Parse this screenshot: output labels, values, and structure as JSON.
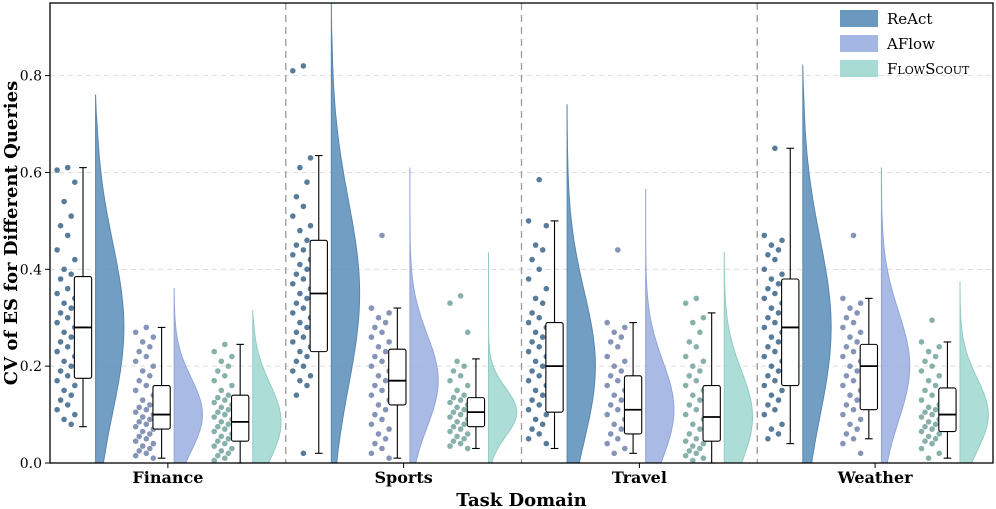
{
  "chart_data": {
    "type": "raincloud",
    "xlabel": "Task Domain",
    "ylabel": "CV of ES for Different Queries",
    "ylim": [
      0,
      0.95
    ],
    "yticks": [
      "0.0",
      "0.2",
      "0.4",
      "0.6",
      "0.8"
    ],
    "grid": "horizontal dashed",
    "legend_position": "top-right",
    "categories": [
      "Finance",
      "Sports",
      "Travel",
      "Weather"
    ],
    "series": [
      {
        "name": "ReAct",
        "color": "#5b8db8",
        "stats": [
          {
            "min": 0.075,
            "q1": 0.175,
            "median": 0.28,
            "q3": 0.385,
            "max": 0.61,
            "kde_max": 0.76
          },
          {
            "min": 0.02,
            "q1": 0.23,
            "median": 0.35,
            "q3": 0.46,
            "max": 0.635,
            "kde_max": 0.95
          },
          {
            "min": 0.03,
            "q1": 0.105,
            "median": 0.2,
            "q3": 0.29,
            "max": 0.5,
            "kde_max": 0.74
          },
          {
            "min": 0.04,
            "q1": 0.16,
            "median": 0.28,
            "q3": 0.38,
            "max": 0.65,
            "kde_max": 0.82
          }
        ],
        "points": [
          [
            0.61,
            0.605,
            0.58,
            0.54,
            0.51,
            0.49,
            0.47,
            0.44,
            0.42,
            0.4,
            0.39,
            0.38,
            0.36,
            0.35,
            0.34,
            0.33,
            0.32,
            0.31,
            0.3,
            0.29,
            0.28,
            0.27,
            0.26,
            0.25,
            0.24,
            0.23,
            0.22,
            0.21,
            0.2,
            0.19,
            0.18,
            0.17,
            0.16,
            0.15,
            0.14,
            0.13,
            0.12,
            0.11,
            0.1,
            0.09,
            0.08
          ],
          [
            0.82,
            0.81,
            0.63,
            0.61,
            0.58,
            0.55,
            0.53,
            0.51,
            0.49,
            0.48,
            0.46,
            0.45,
            0.44,
            0.43,
            0.42,
            0.41,
            0.4,
            0.39,
            0.38,
            0.37,
            0.36,
            0.35,
            0.34,
            0.33,
            0.32,
            0.31,
            0.3,
            0.29,
            0.28,
            0.27,
            0.26,
            0.25,
            0.24,
            0.23,
            0.22,
            0.21,
            0.2,
            0.19,
            0.18,
            0.17,
            0.16,
            0.14,
            0.02
          ],
          [
            0.585,
            0.5,
            0.49,
            0.45,
            0.44,
            0.42,
            0.4,
            0.38,
            0.36,
            0.34,
            0.33,
            0.31,
            0.3,
            0.29,
            0.28,
            0.27,
            0.26,
            0.25,
            0.24,
            0.23,
            0.22,
            0.21,
            0.2,
            0.19,
            0.18,
            0.17,
            0.16,
            0.15,
            0.14,
            0.13,
            0.12,
            0.11,
            0.1,
            0.09,
            0.08,
            0.07,
            0.06,
            0.05,
            0.04
          ],
          [
            0.65,
            0.47,
            0.46,
            0.45,
            0.44,
            0.43,
            0.42,
            0.4,
            0.39,
            0.38,
            0.37,
            0.36,
            0.35,
            0.34,
            0.33,
            0.32,
            0.31,
            0.3,
            0.29,
            0.28,
            0.27,
            0.26,
            0.25,
            0.24,
            0.23,
            0.22,
            0.21,
            0.2,
            0.19,
            0.18,
            0.17,
            0.16,
            0.15,
            0.14,
            0.13,
            0.12,
            0.11,
            0.1,
            0.08,
            0.07,
            0.06,
            0.05
          ]
        ]
      },
      {
        "name": "AFlow",
        "color": "#9aaee0",
        "stats": [
          {
            "min": 0.01,
            "q1": 0.07,
            "median": 0.1,
            "q3": 0.16,
            "max": 0.28,
            "kde_max": 0.36
          },
          {
            "min": 0.01,
            "q1": 0.12,
            "median": 0.17,
            "q3": 0.235,
            "max": 0.32,
            "kde_max": 0.61
          },
          {
            "min": 0.02,
            "q1": 0.06,
            "median": 0.11,
            "q3": 0.18,
            "max": 0.29,
            "kde_max": 0.565
          },
          {
            "min": 0.05,
            "q1": 0.11,
            "median": 0.2,
            "q3": 0.245,
            "max": 0.34,
            "kde_max": 0.61
          }
        ],
        "points": [
          [
            0.28,
            0.27,
            0.26,
            0.25,
            0.24,
            0.23,
            0.22,
            0.21,
            0.2,
            0.19,
            0.18,
            0.17,
            0.16,
            0.15,
            0.14,
            0.13,
            0.12,
            0.115,
            0.11,
            0.105,
            0.1,
            0.095,
            0.09,
            0.085,
            0.08,
            0.075,
            0.07,
            0.065,
            0.06,
            0.055,
            0.05,
            0.045,
            0.04,
            0.035,
            0.03,
            0.025,
            0.02,
            0.015,
            0.01
          ],
          [
            0.47,
            0.32,
            0.31,
            0.3,
            0.29,
            0.28,
            0.27,
            0.26,
            0.25,
            0.24,
            0.23,
            0.22,
            0.21,
            0.2,
            0.19,
            0.18,
            0.17,
            0.16,
            0.15,
            0.14,
            0.13,
            0.12,
            0.11,
            0.1,
            0.09,
            0.08,
            0.07,
            0.06,
            0.05,
            0.04,
            0.03,
            0.02,
            0.01
          ],
          [
            0.44,
            0.29,
            0.28,
            0.27,
            0.26,
            0.25,
            0.24,
            0.22,
            0.21,
            0.2,
            0.19,
            0.18,
            0.17,
            0.16,
            0.15,
            0.14,
            0.13,
            0.12,
            0.11,
            0.1,
            0.09,
            0.08,
            0.07,
            0.06,
            0.05,
            0.04,
            0.03,
            0.02
          ],
          [
            0.47,
            0.34,
            0.33,
            0.32,
            0.31,
            0.3,
            0.29,
            0.28,
            0.27,
            0.26,
            0.25,
            0.24,
            0.23,
            0.22,
            0.21,
            0.2,
            0.19,
            0.18,
            0.17,
            0.16,
            0.15,
            0.14,
            0.13,
            0.12,
            0.11,
            0.1,
            0.09,
            0.08,
            0.07,
            0.06,
            0.05,
            0.04,
            0.02
          ]
        ]
      },
      {
        "name": "FlowScout",
        "color": "#9dd7cf",
        "stats": [
          {
            "min": 0.0,
            "q1": 0.045,
            "median": 0.085,
            "q3": 0.14,
            "max": 0.245,
            "kde_max": 0.315
          },
          {
            "min": 0.03,
            "q1": 0.075,
            "median": 0.105,
            "q3": 0.135,
            "max": 0.215,
            "kde_max": 0.435
          },
          {
            "min": 0.0,
            "q1": 0.045,
            "median": 0.095,
            "q3": 0.16,
            "max": 0.31,
            "kde_max": 0.435
          },
          {
            "min": 0.01,
            "q1": 0.065,
            "median": 0.1,
            "q3": 0.155,
            "max": 0.25,
            "kde_max": 0.375
          }
        ],
        "points": [
          [
            0.245,
            0.23,
            0.22,
            0.21,
            0.2,
            0.19,
            0.18,
            0.17,
            0.16,
            0.15,
            0.14,
            0.135,
            0.13,
            0.125,
            0.12,
            0.115,
            0.11,
            0.105,
            0.1,
            0.095,
            0.09,
            0.085,
            0.08,
            0.075,
            0.07,
            0.065,
            0.06,
            0.055,
            0.05,
            0.045,
            0.04,
            0.035,
            0.03,
            0.025,
            0.02,
            0.015,
            0.01,
            0.005
          ],
          [
            0.345,
            0.33,
            0.27,
            0.21,
            0.2,
            0.19,
            0.18,
            0.17,
            0.16,
            0.15,
            0.14,
            0.135,
            0.13,
            0.125,
            0.12,
            0.115,
            0.11,
            0.105,
            0.1,
            0.095,
            0.09,
            0.085,
            0.08,
            0.075,
            0.07,
            0.065,
            0.06,
            0.055,
            0.05,
            0.045,
            0.04,
            0.035,
            0.03
          ],
          [
            0.34,
            0.33,
            0.3,
            0.29,
            0.27,
            0.25,
            0.24,
            0.22,
            0.21,
            0.2,
            0.19,
            0.18,
            0.17,
            0.16,
            0.15,
            0.14,
            0.13,
            0.12,
            0.11,
            0.1,
            0.09,
            0.08,
            0.07,
            0.06,
            0.05,
            0.045,
            0.04,
            0.035,
            0.03,
            0.025,
            0.02,
            0.015,
            0.01,
            0.005
          ],
          [
            0.295,
            0.25,
            0.24,
            0.23,
            0.22,
            0.21,
            0.2,
            0.19,
            0.18,
            0.17,
            0.16,
            0.15,
            0.14,
            0.13,
            0.12,
            0.115,
            0.11,
            0.105,
            0.1,
            0.095,
            0.09,
            0.085,
            0.08,
            0.075,
            0.07,
            0.065,
            0.06,
            0.055,
            0.05,
            0.045,
            0.04,
            0.03,
            0.02,
            0.01
          ]
        ]
      }
    ]
  }
}
